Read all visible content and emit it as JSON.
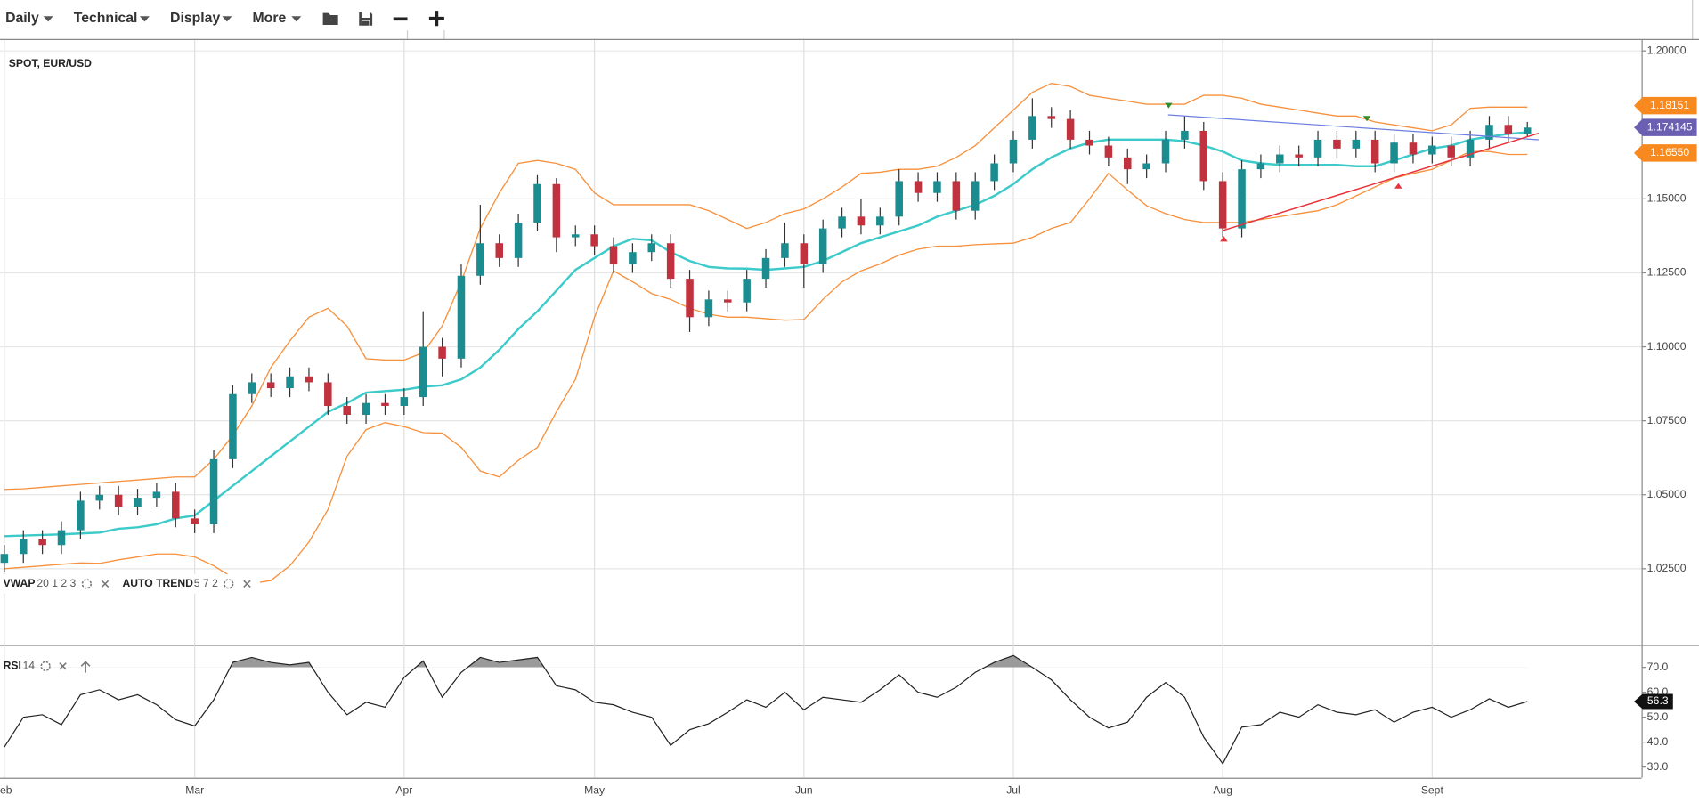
{
  "toolbar": [
    "Daily",
    "Technical",
    "Display",
    "More"
  ],
  "chart_data": [
    {
      "type": "candlestick",
      "title": "SPOT, EUR/USD",
      "categories": [
        "eb",
        null,
        null,
        null,
        null,
        null,
        null,
        null,
        null,
        null,
        "Mar",
        null,
        null,
        null,
        null,
        null,
        null,
        null,
        null,
        null,
        null,
        "Apr",
        null,
        null,
        null,
        null,
        null,
        null,
        null,
        null,
        null,
        "May",
        null,
        null,
        null,
        null,
        null,
        null,
        null,
        null,
        null,
        null,
        "Jun",
        null,
        null,
        null,
        null,
        null,
        null,
        null,
        null,
        null,
        null,
        "Jul",
        null,
        null,
        null,
        null,
        null,
        null,
        null,
        null,
        null,
        null,
        "Aug",
        null,
        null,
        null,
        null,
        null,
        null,
        null,
        null,
        null,
        null,
        "Sept",
        null,
        null,
        null,
        null,
        null
      ],
      "open": [
        1.027,
        1.03,
        1.035,
        1.033,
        1.038,
        1.048,
        1.05,
        1.046,
        1.049,
        1.051,
        1.042,
        1.04,
        1.062,
        1.084,
        1.088,
        1.086,
        1.09,
        1.088,
        1.08,
        1.077,
        1.081,
        1.08,
        1.083,
        1.1,
        1.096,
        1.124,
        1.135,
        1.13,
        1.142,
        1.155,
        1.137,
        1.138,
        1.134,
        1.128,
        1.132,
        1.135,
        1.123,
        1.11,
        1.116,
        1.115,
        1.123,
        1.13,
        1.135,
        1.128,
        1.14,
        1.144,
        1.141,
        1.144,
        1.156,
        1.152,
        1.156,
        1.146,
        1.156,
        1.162,
        1.17,
        1.178,
        1.177,
        1.17,
        1.168,
        1.164,
        1.16,
        1.162,
        1.17,
        1.173,
        1.156,
        1.14,
        1.16,
        1.162,
        1.165,
        1.164,
        1.17,
        1.167,
        1.17,
        1.162,
        1.169,
        1.165,
        1.168,
        1.164,
        1.17,
        1.175,
        1.172
      ],
      "high": [
        1.033,
        1.038,
        1.038,
        1.041,
        1.051,
        1.053,
        1.053,
        1.052,
        1.054,
        1.054,
        1.045,
        1.065,
        1.087,
        1.091,
        1.091,
        1.093,
        1.093,
        1.091,
        1.083,
        1.084,
        1.084,
        1.086,
        1.112,
        1.103,
        1.128,
        1.148,
        1.138,
        1.145,
        1.158,
        1.157,
        1.141,
        1.141,
        1.137,
        1.135,
        1.138,
        1.138,
        1.126,
        1.119,
        1.119,
        1.126,
        1.133,
        1.142,
        1.138,
        1.143,
        1.147,
        1.15,
        1.147,
        1.16,
        1.159,
        1.159,
        1.159,
        1.159,
        1.165,
        1.173,
        1.184,
        1.181,
        1.18,
        1.173,
        1.171,
        1.167,
        1.165,
        1.173,
        1.178,
        1.176,
        1.159,
        1.163,
        1.165,
        1.168,
        1.168,
        1.173,
        1.173,
        1.173,
        1.173,
        1.172,
        1.172,
        1.171,
        1.171,
        1.173,
        1.178,
        1.178,
        1.176
      ],
      "low": [
        1.024,
        1.027,
        1.03,
        1.03,
        1.035,
        1.045,
        1.043,
        1.043,
        1.046,
        1.039,
        1.037,
        1.037,
        1.059,
        1.081,
        1.083,
        1.083,
        1.085,
        1.077,
        1.074,
        1.074,
        1.077,
        1.077,
        1.08,
        1.09,
        1.093,
        1.121,
        1.127,
        1.127,
        1.139,
        1.132,
        1.134,
        1.131,
        1.125,
        1.125,
        1.129,
        1.12,
        1.105,
        1.107,
        1.112,
        1.112,
        1.12,
        1.127,
        1.12,
        1.125,
        1.137,
        1.138,
        1.138,
        1.141,
        1.149,
        1.149,
        1.143,
        1.143,
        1.153,
        1.159,
        1.167,
        1.174,
        1.167,
        1.165,
        1.161,
        1.155,
        1.157,
        1.159,
        1.167,
        1.153,
        1.137,
        1.137,
        1.157,
        1.159,
        1.161,
        1.161,
        1.164,
        1.164,
        1.159,
        1.159,
        1.162,
        1.162,
        1.161,
        1.161,
        1.167,
        1.169,
        1.171
      ],
      "close": [
        1.03,
        1.035,
        1.033,
        1.038,
        1.048,
        1.05,
        1.046,
        1.049,
        1.051,
        1.042,
        1.04,
        1.062,
        1.084,
        1.088,
        1.086,
        1.09,
        1.088,
        1.08,
        1.077,
        1.081,
        1.08,
        1.083,
        1.1,
        1.096,
        1.124,
        1.135,
        1.13,
        1.142,
        1.155,
        1.137,
        1.138,
        1.134,
        1.128,
        1.132,
        1.135,
        1.123,
        1.11,
        1.116,
        1.115,
        1.123,
        1.13,
        1.135,
        1.128,
        1.14,
        1.144,
        1.141,
        1.144,
        1.156,
        1.152,
        1.156,
        1.146,
        1.156,
        1.162,
        1.17,
        1.178,
        1.177,
        1.17,
        1.168,
        1.164,
        1.16,
        1.162,
        1.17,
        1.173,
        1.156,
        1.14,
        1.16,
        1.162,
        1.165,
        1.164,
        1.17,
        1.167,
        1.17,
        1.162,
        1.169,
        1.165,
        1.168,
        1.164,
        1.17,
        1.175,
        1.172,
        1.1741
      ],
      "up_color": "#1b8c8f",
      "down_color": "#c1323f",
      "lines": [
        {
          "color": "#3ccaca",
          "values": [
            1.036,
            1.0362,
            1.0364,
            1.0366,
            1.0369,
            1.0372,
            1.0385,
            1.039,
            1.04,
            1.042,
            1.043,
            1.048,
            1.053,
            1.058,
            1.063,
            1.068,
            1.073,
            1.078,
            1.081,
            1.0845,
            1.085,
            1.0855,
            1.0865,
            1.087,
            1.089,
            1.093,
            1.099,
            1.106,
            1.112,
            1.119,
            1.126,
            1.13,
            1.134,
            1.1365,
            1.136,
            1.132,
            1.129,
            1.127,
            1.1265,
            1.1264,
            1.126,
            1.1265,
            1.127,
            1.129,
            1.132,
            1.135,
            1.137,
            1.139,
            1.141,
            1.144,
            1.146,
            1.148,
            1.151,
            1.155,
            1.16,
            1.164,
            1.167,
            1.169,
            1.17,
            1.17,
            1.17,
            1.17,
            1.1695,
            1.168,
            1.166,
            1.163,
            1.162,
            1.1615,
            1.1615,
            1.1615,
            1.1615,
            1.161,
            1.161,
            1.163,
            1.165,
            1.167,
            1.168,
            1.17,
            1.171,
            1.172,
            1.1725
          ]
        },
        {
          "color": "#f7913d",
          "values": [
            1.0518,
            1.052,
            1.0525,
            1.053,
            1.0535,
            1.054,
            1.0545,
            1.055,
            1.0555,
            1.056,
            1.056,
            1.062,
            1.07,
            1.08,
            1.093,
            1.102,
            1.11,
            1.113,
            1.107,
            1.096,
            1.0955,
            1.0955,
            1.098,
            1.107,
            1.122,
            1.14,
            1.152,
            1.162,
            1.163,
            1.162,
            1.16,
            1.152,
            1.148,
            1.148,
            1.148,
            1.148,
            1.148,
            1.146,
            1.143,
            1.14,
            1.142,
            1.145,
            1.1466,
            1.15,
            1.154,
            1.1586,
            1.159,
            1.16,
            1.16,
            1.161,
            1.164,
            1.168,
            1.174,
            1.18,
            1.186,
            1.189,
            1.188,
            1.185,
            1.184,
            1.183,
            1.182,
            1.182,
            1.182,
            1.185,
            1.185,
            1.184,
            1.182,
            1.181,
            1.18,
            1.179,
            1.178,
            1.178,
            1.176,
            1.175,
            1.174,
            1.173,
            1.175,
            1.1806,
            1.181,
            1.181,
            1.181
          ]
        },
        {
          "color": "#f7913d",
          "values": [
            1.025,
            1.0255,
            1.026,
            1.0265,
            1.027,
            1.0268,
            1.028,
            1.029,
            1.03,
            1.03,
            1.029,
            1.026,
            1.022,
            1.02,
            1.021,
            1.026,
            1.034,
            1.045,
            1.063,
            1.072,
            1.0744,
            1.073,
            1.071,
            1.0708,
            1.066,
            1.058,
            1.056,
            1.0616,
            1.066,
            1.078,
            1.089,
            1.11,
            1.1257,
            1.122,
            1.118,
            1.116,
            1.113,
            1.111,
            1.11,
            1.11,
            1.1095,
            1.109,
            1.1092,
            1.116,
            1.122,
            1.1257,
            1.128,
            1.131,
            1.133,
            1.134,
            1.134,
            1.1345,
            1.1348,
            1.135,
            1.137,
            1.14,
            1.142,
            1.15,
            1.1586,
            1.153,
            1.1477,
            1.145,
            1.143,
            1.142,
            1.142,
            1.142,
            1.143,
            1.144,
            1.145,
            1.146,
            1.148,
            1.151,
            1.154,
            1.157,
            1.1586,
            1.16,
            1.163,
            1.166,
            1.166,
            1.165,
            1.165
          ]
        }
      ],
      "indicators": [
        {
          "name": "VWAP",
          "params": "20 1 2 3"
        },
        {
          "name": "AUTO TREND",
          "params": "5 7 2"
        }
      ],
      "price_labels": [
        {
          "value": 1.18151,
          "color": "#f7891f"
        },
        {
          "value": 1.174145,
          "color": "#6a5fb0"
        },
        {
          "value": 1.1655,
          "label": "1.16550",
          "color": "#f7891f"
        }
      ],
      "ylim": [
        0.99938,
        1.20366
      ],
      "yticks": [
        {
          "value": 1.025,
          "label": "1.02500"
        },
        {
          "value": 1.05,
          "label": "1.05000"
        },
        {
          "value": 1.075,
          "label": "1.07500"
        },
        {
          "value": 1.1,
          "label": "1.10000"
        },
        {
          "value": 1.125,
          "label": "1.12500"
        },
        {
          "value": 1.15,
          "label": "1.15000"
        },
        {
          "value": 1.2,
          "label": "1.20000"
        }
      ],
      "grid": true
    },
    {
      "type": "line",
      "title": "RSI",
      "params": "14",
      "color": "#222222",
      "values": [
        38,
        50,
        51,
        47,
        59,
        61,
        57,
        59,
        55,
        49,
        46.5,
        57,
        72,
        74,
        72,
        71,
        72,
        60,
        51,
        56,
        54,
        66,
        72.6,
        58,
        68,
        74,
        72,
        73,
        74,
        62.6,
        61,
        56,
        55,
        52,
        50,
        38.7,
        45,
        47.4,
        52,
        57,
        54,
        60,
        53,
        58,
        57,
        56,
        61,
        67,
        60,
        58,
        62,
        68,
        72,
        74.8,
        70,
        65,
        57,
        50,
        45.7,
        48,
        58,
        63.9,
        58,
        42,
        31.3,
        46,
        47,
        52,
        50,
        55,
        52,
        51,
        53,
        48,
        52,
        54,
        50,
        53,
        57.4,
        54,
        56.3
      ],
      "ylim": [
        25.7,
        78.3
      ],
      "yticks": [
        {
          "value": 30,
          "label": "30.0"
        },
        {
          "value": 40,
          "label": "40.0"
        },
        {
          "value": 50,
          "label": "50.0"
        },
        {
          "value": 60,
          "label": "60.0"
        },
        {
          "value": 70,
          "label": "70.0"
        }
      ]
    }
  ]
}
